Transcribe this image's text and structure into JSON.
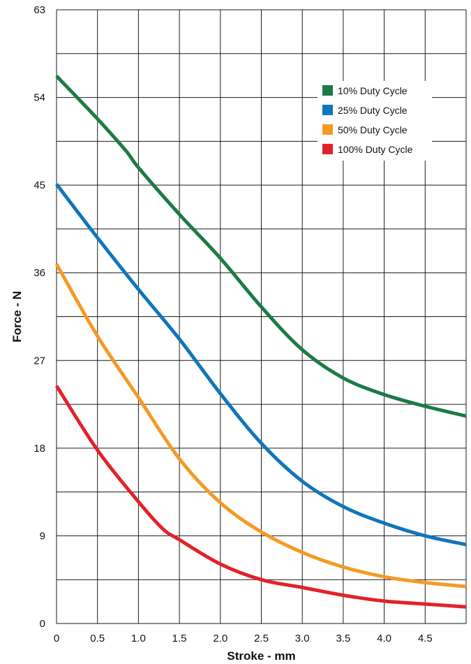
{
  "chart_data": {
    "type": "line",
    "xlabel": "Stroke - mm",
    "ylabel": "Force - N",
    "xlim": [
      0,
      5
    ],
    "ylim": [
      0,
      63
    ],
    "x_ticks": [
      0,
      0.5,
      1.0,
      1.5,
      2.0,
      2.5,
      3.0,
      3.5,
      4.0,
      4.5
    ],
    "x_tick_labels": [
      "0",
      "0.5",
      "1.0",
      "1.5",
      "2.0",
      "2.5",
      "3.0",
      "3.5",
      "4.0",
      "4.5"
    ],
    "y_ticks": [
      0,
      9,
      18,
      27,
      36,
      45,
      54,
      63
    ],
    "y_tick_labels": [
      "0",
      "9",
      "18",
      "27",
      "36",
      "45",
      "54",
      "63"
    ],
    "grid": true,
    "legend_position": "top-right",
    "series": [
      {
        "name": "10% Duty Cycle",
        "color": "#1b7a46",
        "x": [
          0,
          0.5,
          0.85,
          1.0,
          1.5,
          2.0,
          2.5,
          3.0,
          3.5,
          4.0,
          4.5,
          5.0
        ],
        "y": [
          56.2,
          51.8,
          48.5,
          46.8,
          42.0,
          37.5,
          32.5,
          28.1,
          25.2,
          23.5,
          22.3,
          21.3
        ]
      },
      {
        "name": "25% Duty Cycle",
        "color": "#1075bb",
        "x": [
          0,
          0.5,
          1.0,
          1.5,
          2.0,
          2.5,
          3.0,
          3.5,
          4.0,
          4.5,
          5.0
        ],
        "y": [
          45.1,
          39.6,
          34.3,
          29.2,
          23.6,
          18.5,
          14.6,
          12.0,
          10.3,
          9.0,
          8.1
        ]
      },
      {
        "name": "50% Duty Cycle",
        "color": "#f59a23",
        "x": [
          0,
          0.5,
          1.0,
          1.5,
          2.0,
          2.5,
          3.0,
          3.5,
          4.0,
          4.5,
          5.0
        ],
        "y": [
          36.9,
          29.5,
          23.2,
          16.9,
          12.4,
          9.4,
          7.3,
          5.8,
          4.8,
          4.2,
          3.8
        ]
      },
      {
        "name": "100% Duty Cycle",
        "color": "#e32129",
        "x": [
          0,
          0.5,
          1.0,
          1.3,
          1.5,
          2.0,
          2.5,
          3.0,
          3.5,
          4.0,
          4.5,
          5.0
        ],
        "y": [
          24.4,
          17.8,
          12.5,
          9.7,
          8.6,
          6.1,
          4.5,
          3.7,
          2.9,
          2.3,
          2.0,
          1.7
        ]
      }
    ]
  }
}
